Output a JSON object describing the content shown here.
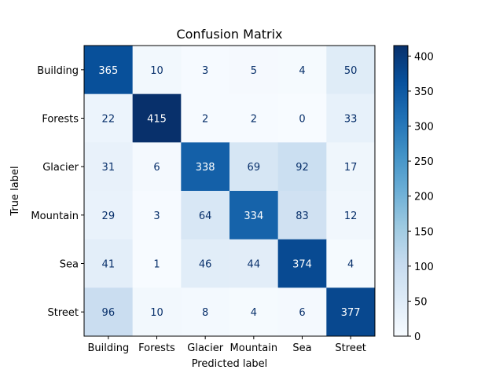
{
  "chart_data": {
    "type": "heatmap",
    "title": "Confusion Matrix",
    "xlabel": "Predicted label",
    "ylabel": "True label",
    "x_categories": [
      "Building",
      "Forests",
      "Glacier",
      "Mountain",
      "Sea",
      "Street"
    ],
    "y_categories": [
      "Building",
      "Forests",
      "Glacier",
      "Mountain",
      "Sea",
      "Street"
    ],
    "values": [
      [
        365,
        10,
        3,
        5,
        4,
        50
      ],
      [
        22,
        415,
        2,
        2,
        0,
        33
      ],
      [
        31,
        6,
        338,
        69,
        92,
        17
      ],
      [
        29,
        3,
        64,
        334,
        83,
        12
      ],
      [
        41,
        1,
        46,
        44,
        374,
        4
      ],
      [
        96,
        10,
        8,
        4,
        6,
        377
      ]
    ],
    "colormap": "Blues",
    "vmin": 0,
    "vmax": 415,
    "colorbar_ticks": [
      0,
      50,
      100,
      150,
      200,
      250,
      300,
      350,
      400
    ],
    "light_text_color": "#ffffff",
    "dark_text_color": "#08306b"
  }
}
